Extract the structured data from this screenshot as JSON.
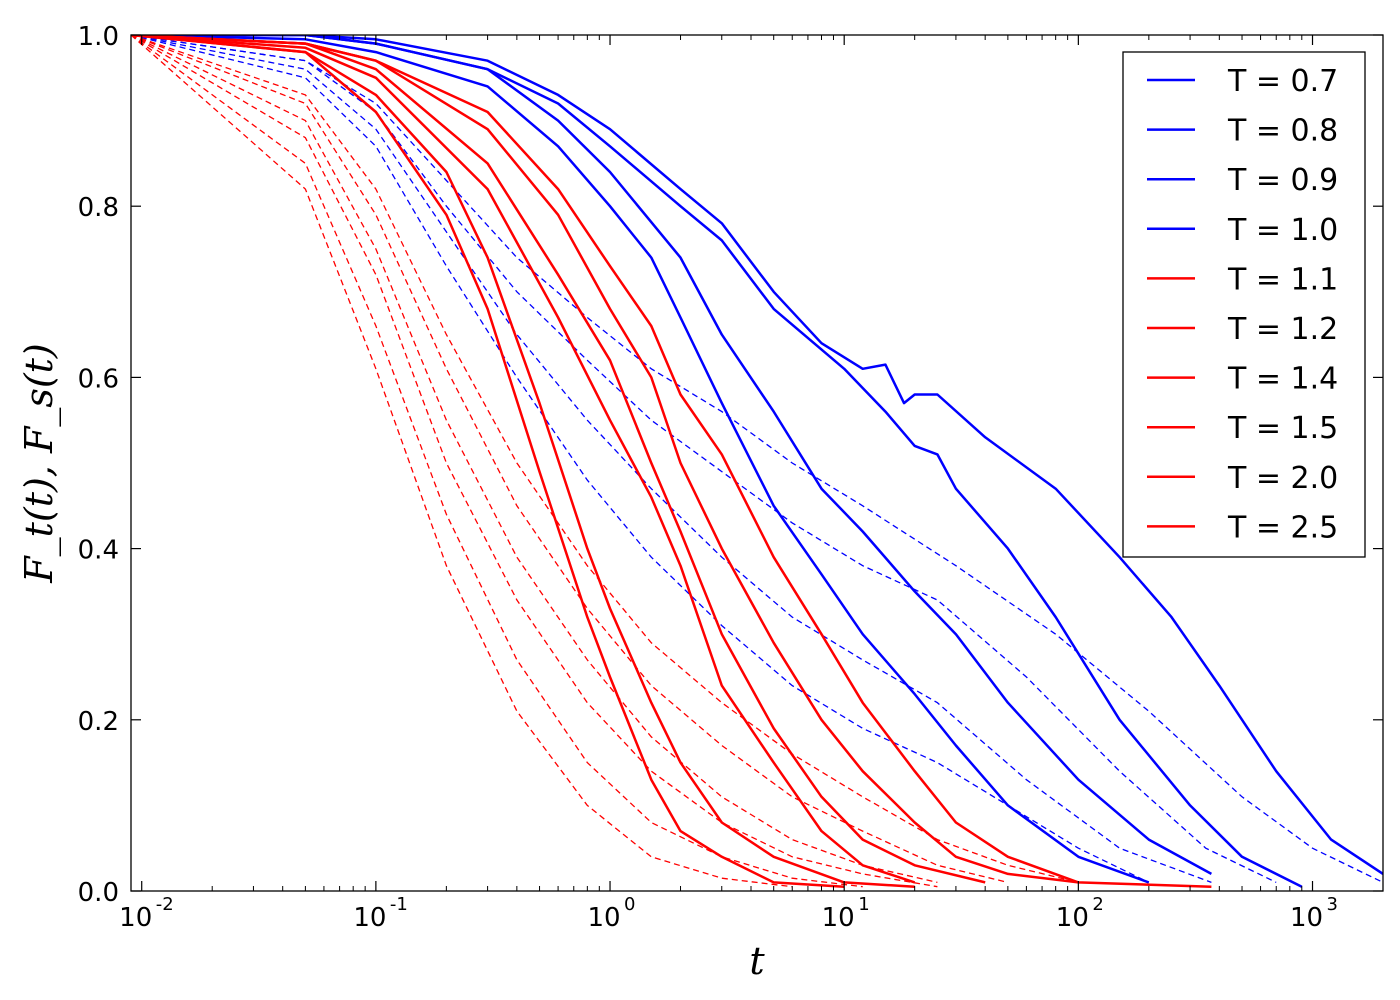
{
  "chart_data": {
    "type": "line",
    "xlabel": "t",
    "ylabel": "F_t(t), F_s(t)",
    "xscale": "log",
    "xlim": [
      0.009,
      2000
    ],
    "ylim": [
      0.0,
      1.0
    ],
    "grid": false,
    "legend_position": "top-right",
    "x_ticks": [
      {
        "value": 0.01,
        "base": "10",
        "exp": "-2"
      },
      {
        "value": 0.1,
        "base": "10",
        "exp": "-1"
      },
      {
        "value": 1,
        "base": "10",
        "exp": "0"
      },
      {
        "value": 10,
        "base": "10",
        "exp": "1"
      },
      {
        "value": 100,
        "base": "10",
        "exp": "2"
      },
      {
        "value": 1000,
        "base": "10",
        "exp": "3"
      }
    ],
    "y_ticks": [
      {
        "value": 0.0,
        "label": "0.0"
      },
      {
        "value": 0.2,
        "label": "0.2"
      },
      {
        "value": 0.4,
        "label": "0.4"
      },
      {
        "value": 0.6,
        "label": "0.6"
      },
      {
        "value": 0.8,
        "label": "0.8"
      },
      {
        "value": 1.0,
        "label": "1.0"
      }
    ],
    "series": [
      {
        "name": "T = 0.7",
        "color": "#0000ff",
        "solid": [
          [
            0.009,
            1.0
          ],
          [
            0.05,
            1.0
          ],
          [
            0.1,
            0.995
          ],
          [
            0.3,
            0.97
          ],
          [
            0.6,
            0.93
          ],
          [
            1.0,
            0.89
          ],
          [
            2.0,
            0.82
          ],
          [
            3.0,
            0.78
          ],
          [
            5.0,
            0.7
          ],
          [
            8.0,
            0.64
          ],
          [
            12,
            0.61
          ],
          [
            15,
            0.615
          ],
          [
            18,
            0.57
          ],
          [
            20,
            0.58
          ],
          [
            25,
            0.58
          ],
          [
            40,
            0.53
          ],
          [
            80,
            0.47
          ],
          [
            150,
            0.39
          ],
          [
            250,
            0.32
          ],
          [
            400,
            0.24
          ],
          [
            700,
            0.14
          ],
          [
            1200,
            0.06
          ],
          [
            2000,
            0.02
          ]
        ],
        "dashed": [
          [
            0.009,
            1.0
          ],
          [
            0.05,
            0.97
          ],
          [
            0.1,
            0.92
          ],
          [
            0.2,
            0.83
          ],
          [
            0.4,
            0.74
          ],
          [
            0.8,
            0.67
          ],
          [
            1.5,
            0.61
          ],
          [
            3.0,
            0.56
          ],
          [
            6.0,
            0.5
          ],
          [
            12,
            0.45
          ],
          [
            30,
            0.38
          ],
          [
            80,
            0.3
          ],
          [
            200,
            0.21
          ],
          [
            500,
            0.11
          ],
          [
            1000,
            0.05
          ],
          [
            2000,
            0.01
          ]
        ]
      },
      {
        "name": "T = 0.8",
        "color": "#0000ff",
        "solid": [
          [
            0.009,
            1.0
          ],
          [
            0.05,
            1.0
          ],
          [
            0.1,
            0.99
          ],
          [
            0.3,
            0.96
          ],
          [
            0.6,
            0.92
          ],
          [
            1.0,
            0.87
          ],
          [
            2.0,
            0.8
          ],
          [
            3.0,
            0.76
          ],
          [
            5.0,
            0.68
          ],
          [
            10,
            0.61
          ],
          [
            15,
            0.56
          ],
          [
            20,
            0.52
          ],
          [
            25,
            0.51
          ],
          [
            30,
            0.47
          ],
          [
            50,
            0.4
          ],
          [
            80,
            0.32
          ],
          [
            150,
            0.2
          ],
          [
            300,
            0.1
          ],
          [
            500,
            0.04
          ],
          [
            900,
            0.005
          ]
        ],
        "dashed": [
          [
            0.009,
            1.0
          ],
          [
            0.05,
            0.97
          ],
          [
            0.1,
            0.91
          ],
          [
            0.2,
            0.8
          ],
          [
            0.4,
            0.7
          ],
          [
            0.8,
            0.62
          ],
          [
            1.5,
            0.55
          ],
          [
            3.0,
            0.49
          ],
          [
            6.0,
            0.43
          ],
          [
            12,
            0.38
          ],
          [
            25,
            0.34
          ],
          [
            60,
            0.25
          ],
          [
            150,
            0.14
          ],
          [
            350,
            0.05
          ],
          [
            700,
            0.01
          ]
        ]
      },
      {
        "name": "T = 0.9",
        "color": "#0000ff",
        "solid": [
          [
            0.009,
            1.0
          ],
          [
            0.05,
            1.0
          ],
          [
            0.1,
            0.99
          ],
          [
            0.3,
            0.96
          ],
          [
            0.6,
            0.9
          ],
          [
            1.0,
            0.84
          ],
          [
            2.0,
            0.74
          ],
          [
            3.0,
            0.65
          ],
          [
            5.0,
            0.56
          ],
          [
            8.0,
            0.47
          ],
          [
            12,
            0.42
          ],
          [
            20,
            0.35
          ],
          [
            30,
            0.3
          ],
          [
            50,
            0.22
          ],
          [
            100,
            0.13
          ],
          [
            200,
            0.06
          ],
          [
            370,
            0.02
          ]
        ],
        "dashed": [
          [
            0.009,
            1.0
          ],
          [
            0.05,
            0.96
          ],
          [
            0.1,
            0.89
          ],
          [
            0.2,
            0.77
          ],
          [
            0.4,
            0.65
          ],
          [
            0.8,
            0.55
          ],
          [
            1.5,
            0.47
          ],
          [
            3.0,
            0.39
          ],
          [
            6.0,
            0.32
          ],
          [
            12,
            0.27
          ],
          [
            25,
            0.22
          ],
          [
            60,
            0.13
          ],
          [
            150,
            0.05
          ],
          [
            370,
            0.01
          ]
        ]
      },
      {
        "name": "T = 1.0",
        "color": "#0000ff",
        "solid": [
          [
            0.009,
            1.0
          ],
          [
            0.05,
            0.995
          ],
          [
            0.1,
            0.98
          ],
          [
            0.3,
            0.94
          ],
          [
            0.6,
            0.87
          ],
          [
            1.0,
            0.8
          ],
          [
            1.5,
            0.74
          ],
          [
            2.0,
            0.67
          ],
          [
            3.0,
            0.57
          ],
          [
            5.0,
            0.45
          ],
          [
            8.0,
            0.37
          ],
          [
            12,
            0.3
          ],
          [
            20,
            0.23
          ],
          [
            30,
            0.17
          ],
          [
            50,
            0.1
          ],
          [
            100,
            0.04
          ],
          [
            200,
            0.01
          ]
        ],
        "dashed": [
          [
            0.009,
            1.0
          ],
          [
            0.05,
            0.95
          ],
          [
            0.1,
            0.87
          ],
          [
            0.2,
            0.73
          ],
          [
            0.4,
            0.6
          ],
          [
            0.8,
            0.48
          ],
          [
            1.5,
            0.39
          ],
          [
            3.0,
            0.31
          ],
          [
            6.0,
            0.24
          ],
          [
            12,
            0.19
          ],
          [
            25,
            0.15
          ],
          [
            50,
            0.1
          ],
          [
            100,
            0.05
          ],
          [
            200,
            0.01
          ]
        ]
      },
      {
        "name": "T = 1.1",
        "color": "#ff0000",
        "solid": [
          [
            0.009,
            1.0
          ],
          [
            0.05,
            0.99
          ],
          [
            0.1,
            0.97
          ],
          [
            0.3,
            0.91
          ],
          [
            0.6,
            0.82
          ],
          [
            1.0,
            0.73
          ],
          [
            1.5,
            0.66
          ],
          [
            2.0,
            0.58
          ],
          [
            3.0,
            0.51
          ],
          [
            5.0,
            0.39
          ],
          [
            8.0,
            0.3
          ],
          [
            12,
            0.22
          ],
          [
            20,
            0.14
          ],
          [
            30,
            0.08
          ],
          [
            50,
            0.04
          ],
          [
            100,
            0.01
          ],
          [
            370,
            0.005
          ]
        ],
        "dashed": [
          [
            0.009,
            1.0
          ],
          [
            0.05,
            0.93
          ],
          [
            0.1,
            0.82
          ],
          [
            0.2,
            0.65
          ],
          [
            0.4,
            0.5
          ],
          [
            0.8,
            0.38
          ],
          [
            1.5,
            0.29
          ],
          [
            3.0,
            0.22
          ],
          [
            6.0,
            0.16
          ],
          [
            12,
            0.11
          ],
          [
            25,
            0.06
          ],
          [
            50,
            0.03
          ],
          [
            100,
            0.01
          ]
        ]
      },
      {
        "name": "T = 1.2",
        "color": "#ff0000",
        "solid": [
          [
            0.009,
            1.0
          ],
          [
            0.05,
            0.99
          ],
          [
            0.1,
            0.97
          ],
          [
            0.3,
            0.89
          ],
          [
            0.6,
            0.79
          ],
          [
            1.0,
            0.68
          ],
          [
            1.5,
            0.6
          ],
          [
            2.0,
            0.5
          ],
          [
            3.0,
            0.4
          ],
          [
            5.0,
            0.29
          ],
          [
            8.0,
            0.2
          ],
          [
            12,
            0.14
          ],
          [
            20,
            0.08
          ],
          [
            30,
            0.04
          ],
          [
            50,
            0.02
          ],
          [
            100,
            0.01
          ]
        ],
        "dashed": [
          [
            0.009,
            1.0
          ],
          [
            0.05,
            0.92
          ],
          [
            0.1,
            0.79
          ],
          [
            0.2,
            0.61
          ],
          [
            0.4,
            0.45
          ],
          [
            0.8,
            0.33
          ],
          [
            1.5,
            0.24
          ],
          [
            3.0,
            0.17
          ],
          [
            6.0,
            0.11
          ],
          [
            12,
            0.07
          ],
          [
            25,
            0.03
          ],
          [
            50,
            0.01
          ]
        ]
      },
      {
        "name": "T = 1.4",
        "color": "#ff0000",
        "solid": [
          [
            0.009,
            1.0
          ],
          [
            0.05,
            0.99
          ],
          [
            0.1,
            0.96
          ],
          [
            0.3,
            0.85
          ],
          [
            0.6,
            0.72
          ],
          [
            1.0,
            0.62
          ],
          [
            1.5,
            0.5
          ],
          [
            2.0,
            0.42
          ],
          [
            3.0,
            0.3
          ],
          [
            5.0,
            0.19
          ],
          [
            8.0,
            0.11
          ],
          [
            12,
            0.06
          ],
          [
            20,
            0.03
          ],
          [
            40,
            0.01
          ]
        ],
        "dashed": [
          [
            0.009,
            1.0
          ],
          [
            0.05,
            0.9
          ],
          [
            0.1,
            0.75
          ],
          [
            0.2,
            0.55
          ],
          [
            0.4,
            0.39
          ],
          [
            0.8,
            0.27
          ],
          [
            1.5,
            0.18
          ],
          [
            3.0,
            0.11
          ],
          [
            6.0,
            0.06
          ],
          [
            12,
            0.03
          ],
          [
            25,
            0.01
          ]
        ]
      },
      {
        "name": "T = 1.5",
        "color": "#ff0000",
        "solid": [
          [
            0.009,
            1.0
          ],
          [
            0.05,
            0.985
          ],
          [
            0.1,
            0.95
          ],
          [
            0.3,
            0.82
          ],
          [
            0.6,
            0.67
          ],
          [
            1.0,
            0.55
          ],
          [
            1.5,
            0.46
          ],
          [
            2.0,
            0.38
          ],
          [
            3.0,
            0.24
          ],
          [
            5.0,
            0.15
          ],
          [
            8.0,
            0.07
          ],
          [
            12,
            0.03
          ],
          [
            20,
            0.01
          ]
        ],
        "dashed": [
          [
            0.009,
            1.0
          ],
          [
            0.05,
            0.88
          ],
          [
            0.1,
            0.72
          ],
          [
            0.2,
            0.5
          ],
          [
            0.4,
            0.34
          ],
          [
            0.8,
            0.22
          ],
          [
            1.5,
            0.14
          ],
          [
            3.0,
            0.08
          ],
          [
            6.0,
            0.04
          ],
          [
            12,
            0.02
          ],
          [
            25,
            0.005
          ]
        ]
      },
      {
        "name": "T = 2.0",
        "color": "#ff0000",
        "solid": [
          [
            0.009,
            1.0
          ],
          [
            0.05,
            0.98
          ],
          [
            0.1,
            0.93
          ],
          [
            0.2,
            0.84
          ],
          [
            0.3,
            0.74
          ],
          [
            0.5,
            0.57
          ],
          [
            0.8,
            0.4
          ],
          [
            1.0,
            0.33
          ],
          [
            1.5,
            0.22
          ],
          [
            2.0,
            0.15
          ],
          [
            3.0,
            0.08
          ],
          [
            5.0,
            0.04
          ],
          [
            10,
            0.01
          ],
          [
            20,
            0.005
          ]
        ],
        "dashed": [
          [
            0.009,
            1.0
          ],
          [
            0.05,
            0.85
          ],
          [
            0.1,
            0.66
          ],
          [
            0.2,
            0.44
          ],
          [
            0.4,
            0.27
          ],
          [
            0.8,
            0.15
          ],
          [
            1.5,
            0.08
          ],
          [
            3.0,
            0.04
          ],
          [
            6.0,
            0.015
          ],
          [
            12,
            0.005
          ]
        ]
      },
      {
        "name": "T = 2.5",
        "color": "#ff0000",
        "solid": [
          [
            0.009,
            1.0
          ],
          [
            0.05,
            0.98
          ],
          [
            0.1,
            0.91
          ],
          [
            0.2,
            0.79
          ],
          [
            0.3,
            0.68
          ],
          [
            0.5,
            0.49
          ],
          [
            0.8,
            0.32
          ],
          [
            1.0,
            0.25
          ],
          [
            1.5,
            0.13
          ],
          [
            2.0,
            0.07
          ],
          [
            3.0,
            0.04
          ],
          [
            5.0,
            0.01
          ],
          [
            10,
            0.005
          ]
        ],
        "dashed": [
          [
            0.009,
            1.0
          ],
          [
            0.05,
            0.82
          ],
          [
            0.1,
            0.61
          ],
          [
            0.2,
            0.38
          ],
          [
            0.4,
            0.21
          ],
          [
            0.8,
            0.1
          ],
          [
            1.5,
            0.04
          ],
          [
            3.0,
            0.015
          ],
          [
            6.0,
            0.005
          ]
        ]
      }
    ]
  }
}
